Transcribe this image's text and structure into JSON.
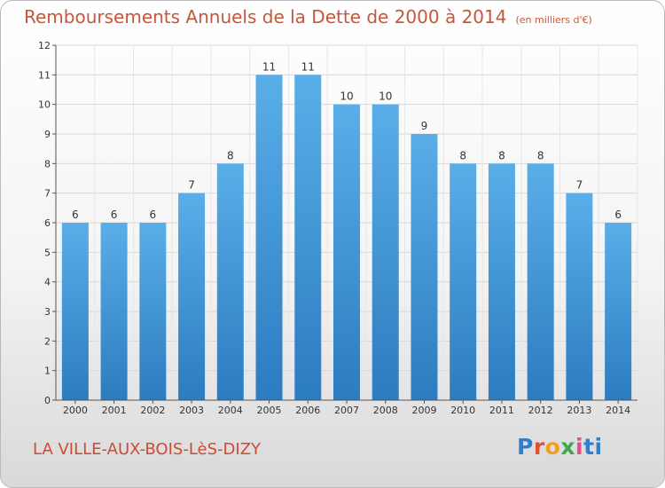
{
  "title": "Remboursements Annuels de la Dette de 2000 à 2014",
  "unit": "(en milliers d'€)",
  "commune": "LA VILLE-AUX-BOIS-LèS-DIZY",
  "logo": [
    "P",
    "r",
    "o",
    "x",
    "i",
    "ti"
  ],
  "colors": {
    "bar_top": "#5aaee8",
    "bar_bottom": "#2b7cc0",
    "title": "#c8563b"
  },
  "chart_data": {
    "type": "bar",
    "title": "Remboursements Annuels de la Dette de 2000 à 2014",
    "subtitle": "(en milliers d'€)",
    "categories": [
      "2000",
      "2001",
      "2002",
      "2003",
      "2004",
      "2005",
      "2006",
      "2007",
      "2008",
      "2009",
      "2010",
      "2011",
      "2012",
      "2013",
      "2014"
    ],
    "values": [
      6,
      6,
      6,
      7,
      8,
      11,
      11,
      10,
      10,
      9,
      8,
      8,
      8,
      7,
      6
    ],
    "yticks": [
      0,
      1,
      2,
      3,
      4,
      5,
      6,
      7,
      8,
      9,
      10,
      11,
      12
    ],
    "ylim": [
      0,
      12
    ],
    "grid": true,
    "xlabel": "",
    "ylabel": ""
  }
}
